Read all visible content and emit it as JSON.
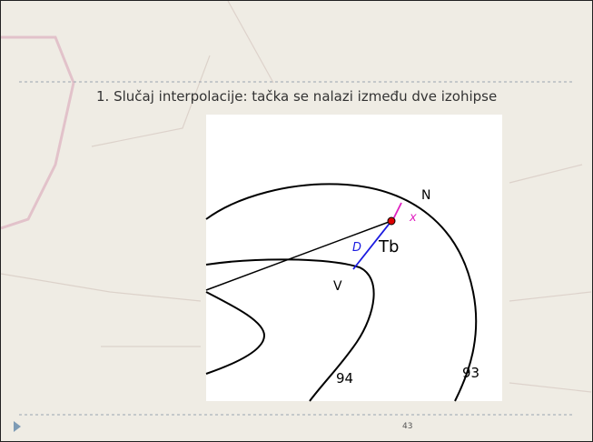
{
  "slide": {
    "title": "1. Slučaj interpolacije: tačka se nalazi između dve izohipse",
    "diagram": {
      "label_n": "N",
      "label_x": "x",
      "label_d": "D",
      "label_tb": "Tb",
      "label_v": "V",
      "label_94": "94",
      "label_93": "93"
    },
    "page_number": "43"
  }
}
